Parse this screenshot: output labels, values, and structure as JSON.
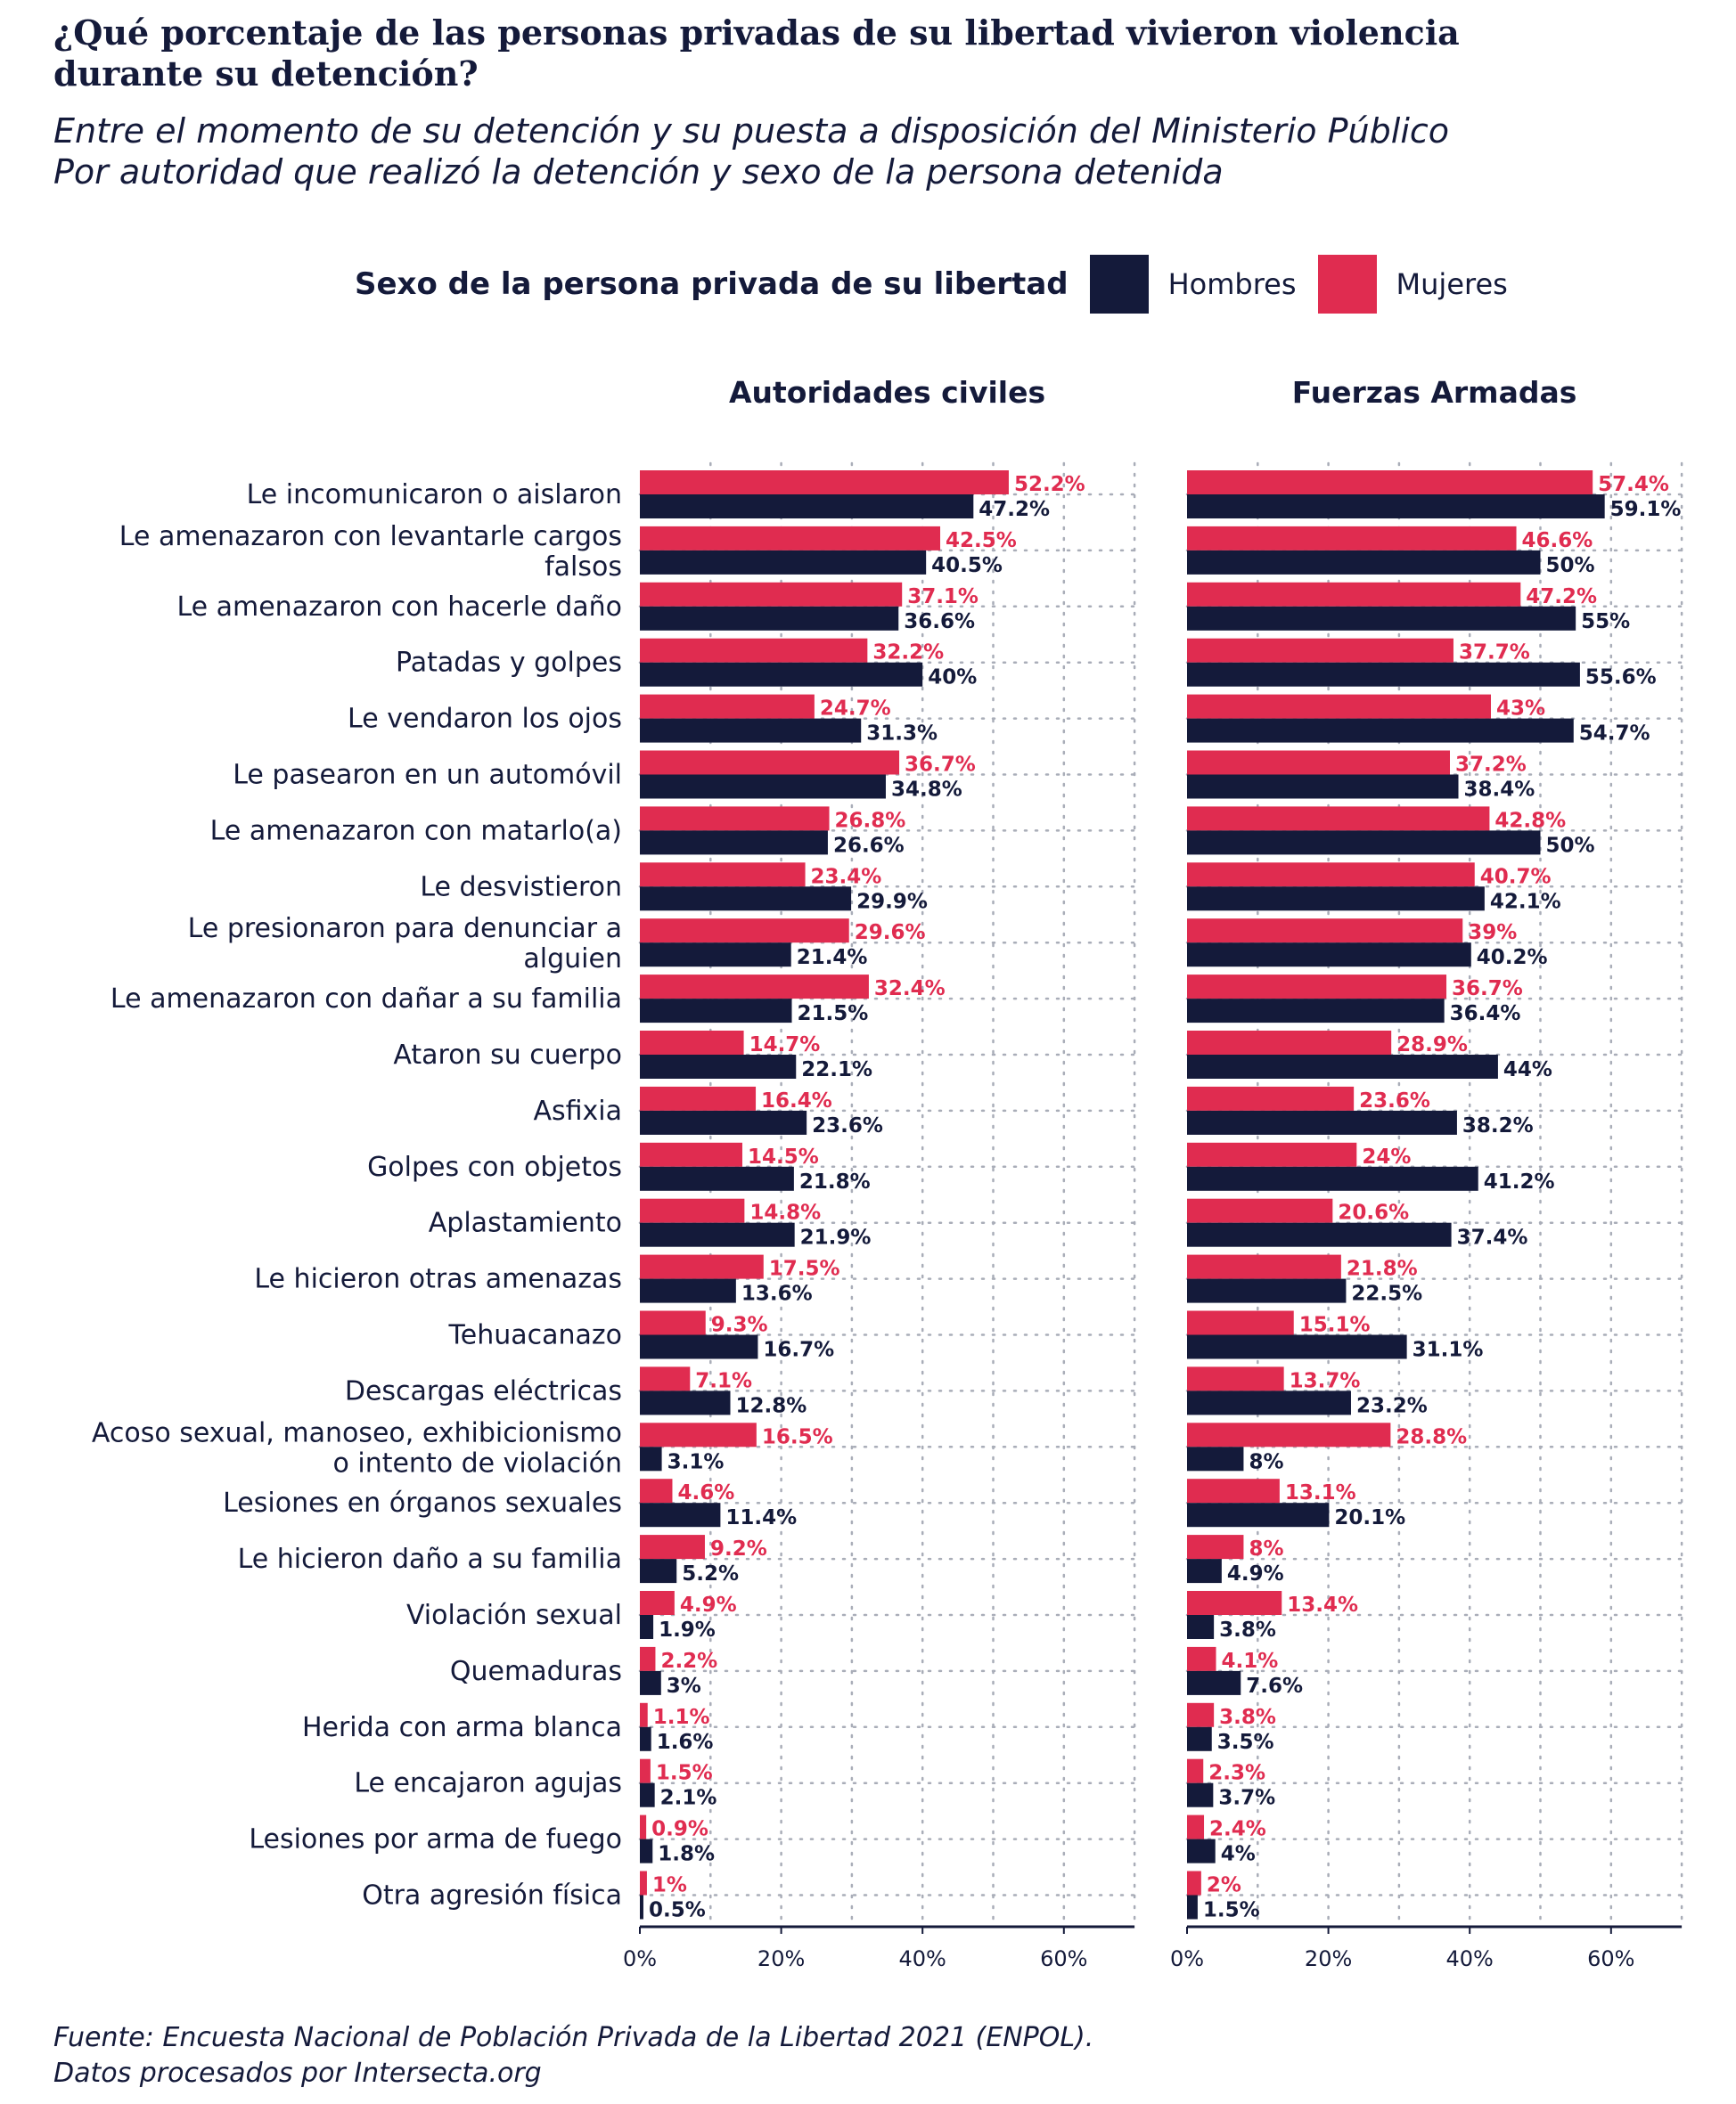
{
  "title_lines": [
    "¿Qué porcentaje de las personas privadas de su libertad vivieron violencia",
    "durante su detención?"
  ],
  "subtitle_lines": [
    "Entre el momento de su detención y su puesta a disposición del Ministerio Público",
    "Por autoridad que realizó la detención y sexo de la persona detenida"
  ],
  "legend": {
    "title": "Sexo de la persona privada de su libertad",
    "position": "top",
    "items": [
      {
        "label": "Hombres",
        "color": "#141a3a"
      },
      {
        "label": "Mujeres",
        "color": "#e02c50"
      }
    ]
  },
  "caption_lines": [
    "Fuente: Encuesta Nacional de Población Privada de la Libertad 2021 (ENPOL).",
    "Datos procesados por Intersecta.org"
  ],
  "chart_data": {
    "type": "bar",
    "orientation": "horizontal",
    "grid": true,
    "xlim": [
      0,
      70
    ],
    "x_ticks": [
      "0%",
      "20%",
      "40%",
      "60%"
    ],
    "x_tick_values": [
      0,
      20,
      40,
      60
    ],
    "categories": [
      [
        "Le incomunicaron o aislaron"
      ],
      [
        "Le amenazaron con levantarle cargos",
        "falsos"
      ],
      [
        "Le amenazaron con hacerle daño"
      ],
      [
        "Patadas y golpes"
      ],
      [
        "Le vendaron los ojos"
      ],
      [
        "Le pasearon en un automóvil"
      ],
      [
        "Le amenazaron con matarlo(a)"
      ],
      [
        "Le desvistieron"
      ],
      [
        "Le presionaron para denunciar a",
        "alguien"
      ],
      [
        "Le amenazaron con dañar a su familia"
      ],
      [
        "Ataron su cuerpo"
      ],
      [
        "Asfixia"
      ],
      [
        "Golpes con objetos"
      ],
      [
        "Aplastamiento"
      ],
      [
        "Le hicieron otras amenazas"
      ],
      [
        "Tehuacanazo"
      ],
      [
        "Descargas eléctricas"
      ],
      [
        "Acoso sexual, manoseo, exhibicionismo",
        "o intento de violación"
      ],
      [
        "Lesiones en órganos sexuales"
      ],
      [
        "Le hicieron daño a su familia"
      ],
      [
        "Violación sexual"
      ],
      [
        "Quemaduras"
      ],
      [
        "Herida con arma blanca"
      ],
      [
        "Le encajaron agujas"
      ],
      [
        "Lesiones por arma de fuego"
      ],
      [
        "Otra agresión física"
      ]
    ],
    "panels": [
      {
        "title": "Autoridades civiles",
        "series": [
          {
            "name": "Mujeres",
            "color": "#e02c50",
            "values": [
              52.2,
              42.5,
              37.1,
              32.2,
              24.7,
              36.7,
              26.8,
              23.4,
              29.6,
              32.4,
              14.7,
              16.4,
              14.5,
              14.8,
              17.5,
              9.3,
              7.1,
              16.5,
              4.6,
              9.2,
              4.9,
              2.2,
              1.1,
              1.5,
              0.9,
              1
            ]
          },
          {
            "name": "Hombres",
            "color": "#141a3a",
            "values": [
              47.2,
              40.5,
              36.6,
              40,
              31.3,
              34.8,
              26.6,
              29.9,
              21.4,
              21.5,
              22.1,
              23.6,
              21.8,
              21.9,
              13.6,
              16.7,
              12.8,
              3.1,
              11.4,
              5.2,
              1.9,
              3,
              1.6,
              2.1,
              1.8,
              0.5
            ]
          }
        ]
      },
      {
        "title": "Fuerzas Armadas",
        "series": [
          {
            "name": "Mujeres",
            "color": "#e02c50",
            "values": [
              57.4,
              46.6,
              47.2,
              37.7,
              43,
              37.2,
              42.8,
              40.7,
              39,
              36.7,
              28.9,
              23.6,
              24,
              20.6,
              21.8,
              15.1,
              13.7,
              28.8,
              13.1,
              8,
              13.4,
              4.1,
              3.8,
              2.3,
              2.4,
              2
            ]
          },
          {
            "name": "Hombres",
            "color": "#141a3a",
            "values": [
              59.1,
              50,
              55,
              55.6,
              54.7,
              38.4,
              50,
              42.1,
              40.2,
              36.4,
              44,
              38.2,
              41.2,
              37.4,
              22.5,
              31.1,
              23.2,
              8,
              20.1,
              4.9,
              3.8,
              7.6,
              3.5,
              3.7,
              4,
              1.5
            ]
          }
        ]
      }
    ]
  }
}
